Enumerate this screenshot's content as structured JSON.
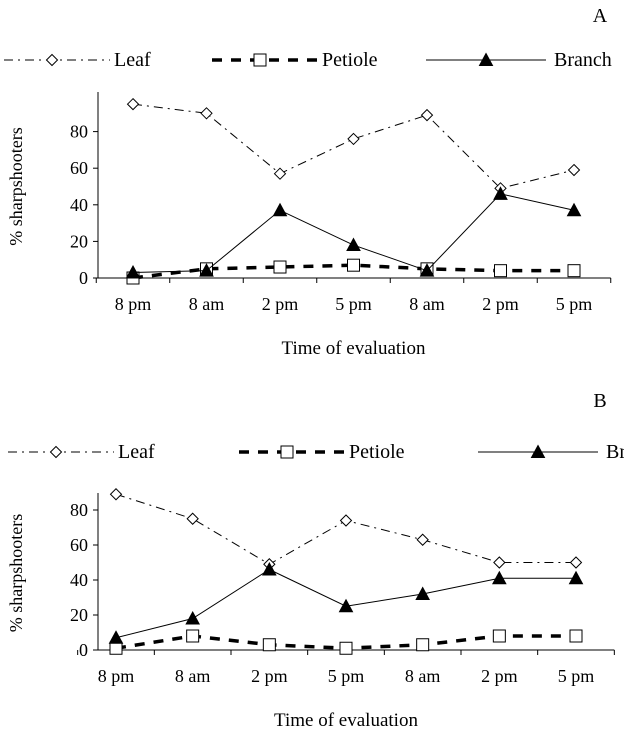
{
  "chart_data": [
    {
      "panel_label": "A",
      "type": "line",
      "categories": [
        "8 pm",
        "8 am",
        "2 pm",
        "5 pm",
        "8 am",
        "2 pm",
        "5 pm"
      ],
      "xlabel": "Time of evaluation",
      "ylabel": "% sharpshooters",
      "ylim": [
        0,
        100
      ],
      "yticks": [
        0,
        20,
        40,
        60,
        80
      ],
      "legend_position": "top",
      "series": [
        {
          "name": "Leaf",
          "values": [
            95,
            90,
            57,
            76,
            89,
            49,
            59
          ]
        },
        {
          "name": "Petiole",
          "values": [
            0,
            5,
            6,
            7,
            5,
            4,
            4
          ]
        },
        {
          "name": "Branch",
          "values": [
            3,
            4,
            37,
            18,
            4,
            46,
            37
          ]
        }
      ]
    },
    {
      "panel_label": "B",
      "type": "line",
      "categories": [
        "8 pm",
        "8 am",
        "2 pm",
        "5 pm",
        "8 am",
        "2 pm",
        "5 pm"
      ],
      "xlabel": "Time of evaluation",
      "ylabel": "% sharpshooters",
      "ylim": [
        0,
        88
      ],
      "yticks": [
        0,
        20,
        40,
        60,
        80
      ],
      "legend_position": "top",
      "series": [
        {
          "name": "Leaf",
          "values": [
            89,
            75,
            49,
            74,
            63,
            50,
            50
          ]
        },
        {
          "name": "Petiole",
          "values": [
            1,
            8,
            3,
            1,
            3,
            8,
            8
          ]
        },
        {
          "name": "Branch",
          "values": [
            7,
            18,
            46,
            25,
            32,
            41,
            41
          ]
        }
      ]
    }
  ]
}
